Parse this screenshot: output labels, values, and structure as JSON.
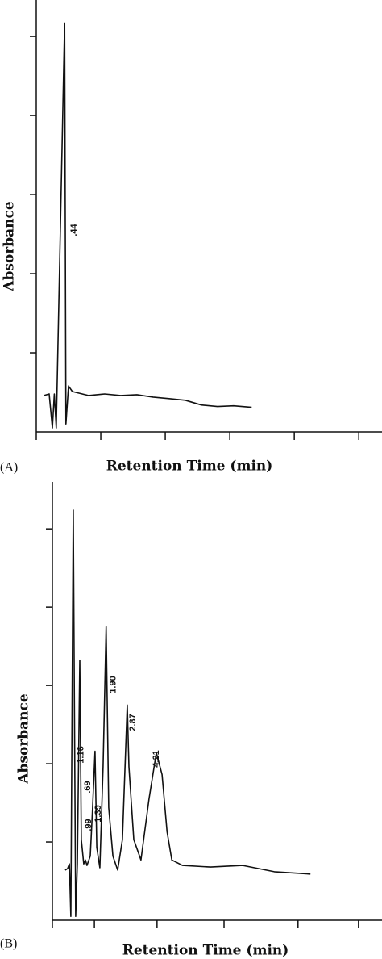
{
  "chart_data": [
    {
      "type": "line",
      "panel_label": "(A)",
      "x_label": "Retention Time (min)",
      "y_label": "Absorbance",
      "x": [
        0.12,
        0.2,
        0.25,
        0.28,
        0.31,
        0.44,
        0.46,
        0.5,
        0.56,
        0.81,
        1.06,
        1.31,
        1.56,
        1.81,
        2.06,
        2.31,
        2.56,
        2.81,
        3.06,
        3.34
      ],
      "values": [
        0.46,
        0.48,
        0.05,
        0.48,
        0.05,
        5.17,
        0.1,
        0.58,
        0.51,
        0.46,
        0.48,
        0.46,
        0.47,
        0.44,
        0.42,
        0.4,
        0.34,
        0.32,
        0.33,
        0.31
      ],
      "xlim": [
        0,
        5.36
      ],
      "ylim": [
        0,
        5.46
      ],
      "xticks": [
        1,
        2,
        3,
        4,
        5
      ],
      "yticks": [
        1,
        2,
        3,
        4,
        5
      ],
      "peak_labels": [
        {
          "value": 0.44,
          "label": ".44"
        }
      ]
    },
    {
      "type": "line",
      "panel_label": "(B)",
      "x_label": "Retention Time (min)",
      "y_label": "Absorbance",
      "x": [
        0.02,
        0.13,
        0.21,
        0.28,
        0.39,
        0.5,
        0.58,
        0.69,
        0.76,
        0.87,
        0.95,
        1.02,
        1.17,
        1.28,
        1.39,
        1.47,
        1.61,
        1.76,
        1.9,
        2.02,
        2.21,
        2.43,
        2.65,
        2.87,
        2.95,
        3.17,
        3.5,
        3.87,
        4.21,
        4.47,
        4.7,
        4.92,
        5.41,
        6.7,
        8.18,
        9.63,
        11.29
      ],
      "values": [
        0.64,
        0.66,
        0.72,
        0.05,
        5.24,
        0.05,
        0.72,
        3.32,
        1.03,
        0.72,
        0.77,
        0.7,
        0.82,
        1.44,
        2.16,
        0.93,
        0.67,
        1.96,
        3.75,
        1.44,
        0.82,
        0.64,
        1.03,
        2.75,
        1.96,
        1.03,
        0.77,
        1.55,
        2.14,
        1.86,
        1.13,
        0.77,
        0.7,
        0.68,
        0.7,
        0.62,
        0.59
      ],
      "xlim": [
        -0.57,
        14.58
      ],
      "ylim": [
        0,
        5.6
      ],
      "xticks": [
        1.36,
        4.24,
        7.32,
        10.72,
        13.5
      ],
      "yticks": [
        1,
        2,
        3,
        4,
        5
      ],
      "peak_labels": [
        {
          "value": 0.69,
          "label": ".69"
        },
        {
          "value": 0.99,
          "label": ".99"
        },
        {
          "value": 1.16,
          "label": "1.16"
        },
        {
          "value": 1.39,
          "label": "1.39"
        },
        {
          "value": 1.9,
          "label": "1.90"
        },
        {
          "value": 2.87,
          "label": "2.87"
        },
        {
          "value": 4.21,
          "label": "4.21"
        }
      ]
    }
  ]
}
